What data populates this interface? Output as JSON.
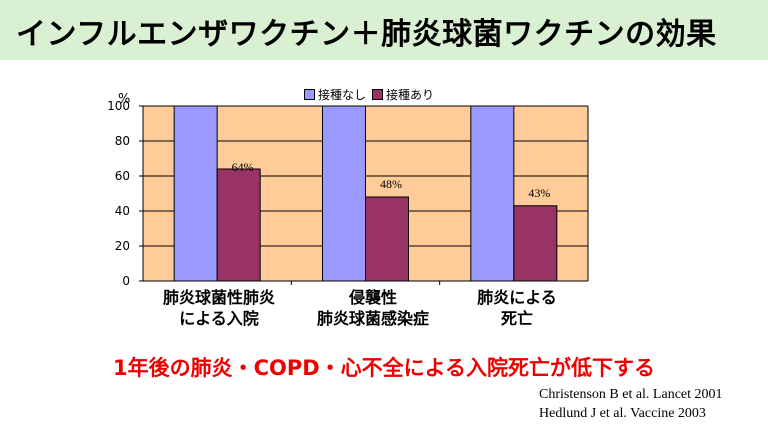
{
  "title": "インフルエンザワクチン＋肺炎球菌ワクチンの効果",
  "chart_data": {
    "type": "bar",
    "unit_label": "%",
    "categories": [
      {
        "line1": "肺炎球菌性肺炎",
        "line2": "による入院"
      },
      {
        "line1": "侵襲性",
        "line2": "肺炎球菌感染症"
      },
      {
        "line1": "肺炎による",
        "line2": "死亡"
      }
    ],
    "series": [
      {
        "name": "接種なし",
        "color": "#9999ff",
        "values": [
          100,
          100,
          100
        ]
      },
      {
        "name": "接種あり",
        "color": "#993366",
        "values": [
          64,
          48,
          43
        ],
        "labels": [
          "64%",
          "48%",
          "43%"
        ]
      }
    ],
    "ylim": [
      0,
      100
    ],
    "yticks": [
      0,
      20,
      40,
      60,
      80,
      100
    ],
    "plot_background": "#ffcc99",
    "grid": true,
    "legend_position": "top"
  },
  "conclusion": "1年後の肺炎・COPD・心不全による入院死亡が低下する",
  "references": [
    "Christenson B et al. Lancet 2001",
    "Hedlund J et al. Vaccine 2003"
  ]
}
